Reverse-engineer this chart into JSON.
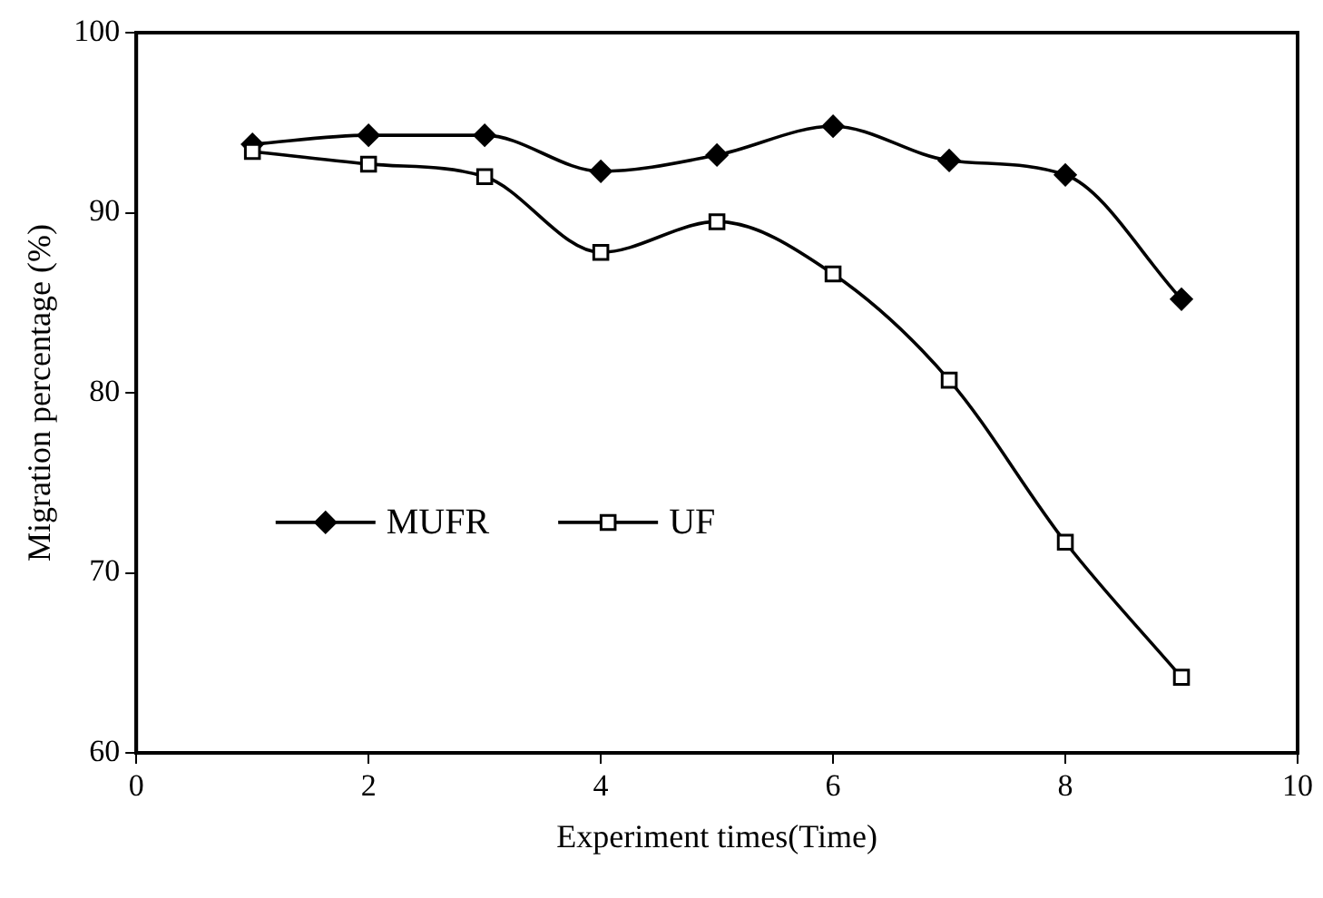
{
  "chart_data": {
    "type": "line",
    "xlabel": "Experiment times(Time)",
    "ylabel": "Migration percentage (%)",
    "x": [
      1,
      2,
      3,
      4,
      5,
      6,
      7,
      8,
      9
    ],
    "series": [
      {
        "name": "MUFR",
        "color": "#000000",
        "marker": "diamond",
        "values": [
          93.8,
          94.3,
          94.3,
          92.3,
          93.2,
          94.8,
          92.9,
          92.1,
          85.2
        ]
      },
      {
        "name": "UF",
        "color": "#000000",
        "marker": "square",
        "values": [
          93.4,
          92.7,
          92.0,
          87.8,
          89.5,
          86.6,
          80.7,
          71.7,
          64.2
        ]
      }
    ],
    "xlim": [
      0,
      10
    ],
    "xticks": [
      0,
      2,
      4,
      6,
      8,
      10
    ],
    "ylim": [
      60,
      100
    ],
    "yticks": [
      60,
      70,
      80,
      90,
      100
    ],
    "grid": false,
    "legend": "center left",
    "line_style": "solid"
  }
}
